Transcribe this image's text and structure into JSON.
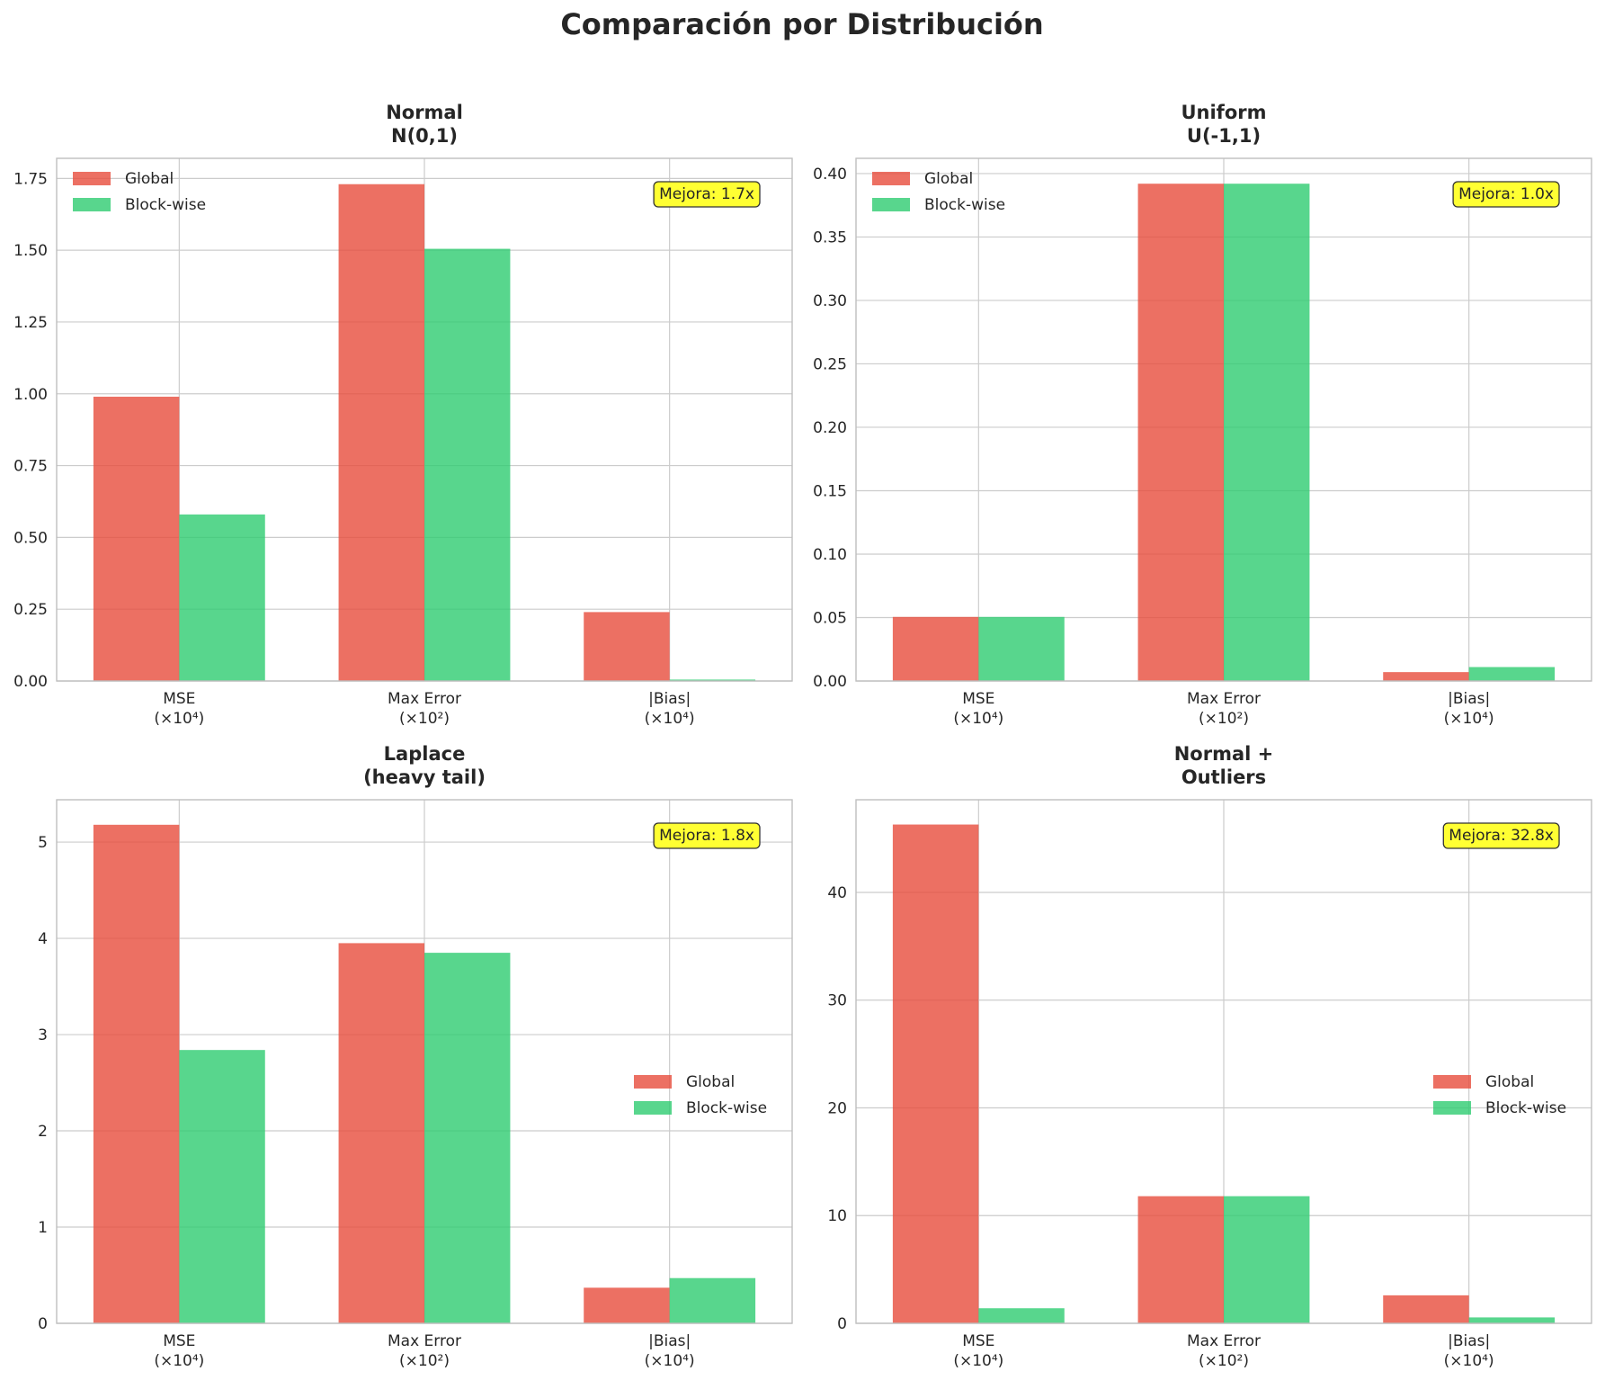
{
  "title": "Comparación por Distribución",
  "colors": {
    "global": "#e74c3c",
    "blockwise": "#2ecc71",
    "annotation_bg": "#ffff33"
  },
  "chart_data": [
    {
      "type": "bar",
      "title": [
        "Normal",
        "N(0,1)"
      ],
      "categories": [
        [
          "MSE",
          "(×10⁴)"
        ],
        [
          "Max Error",
          "(×10²)"
        ],
        [
          "|Bias|",
          "(×10⁴)"
        ]
      ],
      "series": [
        {
          "name": "Global",
          "values": [
            0.99,
            1.73,
            0.24
          ]
        },
        {
          "name": "Block-wise",
          "values": [
            0.58,
            1.505,
            0.005
          ]
        }
      ],
      "ylim": [
        0,
        1.82
      ],
      "yticks": [
        0,
        0.25,
        0.5,
        0.75,
        1.0,
        1.25,
        1.5,
        1.75
      ],
      "ytick_labels": [
        "0.00",
        "0.25",
        "0.50",
        "0.75",
        "1.00",
        "1.25",
        "1.50",
        "1.75"
      ],
      "legend_position": "top-left",
      "annotation": "Mejora: 1.7x"
    },
    {
      "type": "bar",
      "title": [
        "Uniform",
        "U(-1,1)"
      ],
      "categories": [
        [
          "MSE",
          "(×10⁴)"
        ],
        [
          "Max Error",
          "(×10²)"
        ],
        [
          "|Bias|",
          "(×10⁴)"
        ]
      ],
      "series": [
        {
          "name": "Global",
          "values": [
            0.0505,
            0.392,
            0.007
          ]
        },
        {
          "name": "Block-wise",
          "values": [
            0.0505,
            0.392,
            0.011
          ]
        }
      ],
      "ylim": [
        0,
        0.412
      ],
      "yticks": [
        0,
        0.05,
        0.1,
        0.15,
        0.2,
        0.25,
        0.3,
        0.35,
        0.4
      ],
      "ytick_labels": [
        "0.00",
        "0.05",
        "0.10",
        "0.15",
        "0.20",
        "0.25",
        "0.30",
        "0.35",
        "0.40"
      ],
      "legend_position": "top-left",
      "annotation": "Mejora: 1.0x"
    },
    {
      "type": "bar",
      "title": [
        "Laplace",
        "(heavy tail)"
      ],
      "categories": [
        [
          "MSE",
          "(×10⁴)"
        ],
        [
          "Max Error",
          "(×10²)"
        ],
        [
          "|Bias|",
          "(×10⁴)"
        ]
      ],
      "series": [
        {
          "name": "Global",
          "values": [
            5.18,
            3.95,
            0.37
          ]
        },
        {
          "name": "Block-wise",
          "values": [
            2.84,
            3.85,
            0.47
          ]
        }
      ],
      "ylim": [
        0,
        5.44
      ],
      "yticks": [
        0,
        1,
        2,
        3,
        4,
        5
      ],
      "ytick_labels": [
        "0",
        "1",
        "2",
        "3",
        "4",
        "5"
      ],
      "legend_position": "center-right",
      "annotation": "Mejora: 1.8x"
    },
    {
      "type": "bar",
      "title": [
        "Normal +",
        "Outliers"
      ],
      "categories": [
        [
          "MSE",
          "(×10⁴)"
        ],
        [
          "Max Error",
          "(×10²)"
        ],
        [
          "|Bias|",
          "(×10⁴)"
        ]
      ],
      "series": [
        {
          "name": "Global",
          "values": [
            46.3,
            11.8,
            2.6
          ]
        },
        {
          "name": "Block-wise",
          "values": [
            1.4,
            11.8,
            0.55
          ]
        }
      ],
      "ylim": [
        0,
        48.6
      ],
      "yticks": [
        0,
        10,
        20,
        30,
        40
      ],
      "ytick_labels": [
        "0",
        "10",
        "20",
        "30",
        "40"
      ],
      "legend_position": "center-right",
      "annotation": "Mejora: 32.8x"
    }
  ]
}
